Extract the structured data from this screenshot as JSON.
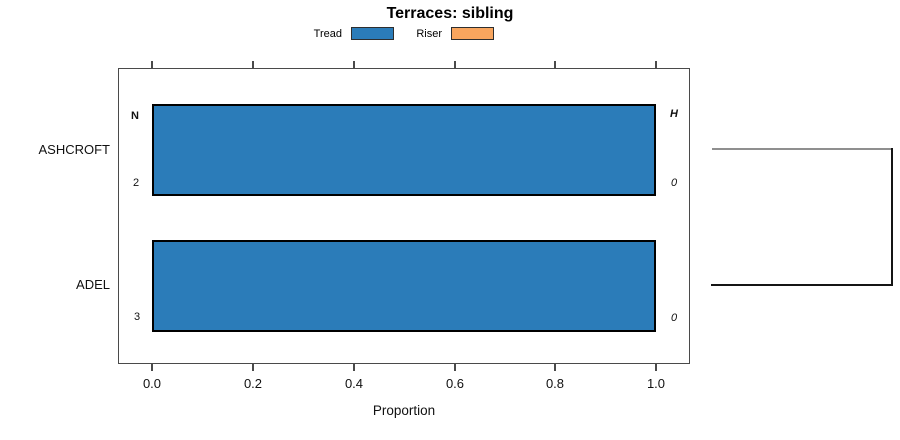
{
  "title": "Terraces: sibling",
  "legend": {
    "items": [
      {
        "label": "Tread",
        "color": "#2b7cb9"
      },
      {
        "label": "Riser",
        "color": "#f8a55e"
      }
    ]
  },
  "x_axis": {
    "label": "Proportion",
    "tick_labels": [
      "0.0",
      "0.2",
      "0.4",
      "0.6",
      "0.8",
      "1.0"
    ]
  },
  "y_axis": {
    "categories": [
      "ASHCROFT",
      "ADEL"
    ]
  },
  "annotations": {
    "left_header": "N",
    "right_header": "H",
    "rows": [
      {
        "category": "ASHCROFT",
        "n": "2",
        "h": "0"
      },
      {
        "category": "ADEL",
        "n": "3",
        "h": "0"
      }
    ]
  },
  "dendrogram": {
    "description": "bracket joining ASHCROFT and ADEL rows on right side",
    "top_branch_color": "#8f8f8f",
    "join_color": "#151515",
    "bottom_branch_color": "#151515"
  },
  "chart_data": {
    "type": "bar",
    "orientation": "horizontal",
    "title": "Terraces: sibling",
    "xlabel": "Proportion",
    "ylabel": "",
    "xlim": [
      0,
      1.08
    ],
    "xticks": [
      0,
      0.2,
      0.4,
      0.6,
      0.8,
      1.0
    ],
    "categories": [
      "ASHCROFT",
      "ADEL"
    ],
    "series": [
      {
        "name": "Tread",
        "color": "#2b7cb9",
        "values": [
          1.0,
          1.0
        ]
      },
      {
        "name": "Riser",
        "color": "#f8a55e",
        "values": [
          0.0,
          0.0
        ]
      }
    ],
    "bar_value_labels": {
      "N": [
        "2",
        "3"
      ],
      "H": [
        "0",
        "0"
      ]
    },
    "legend_position": "top-center",
    "grid": false,
    "bar_border_color": "#000000",
    "right_annotation": "dendrogram bracket linking the two rows"
  }
}
